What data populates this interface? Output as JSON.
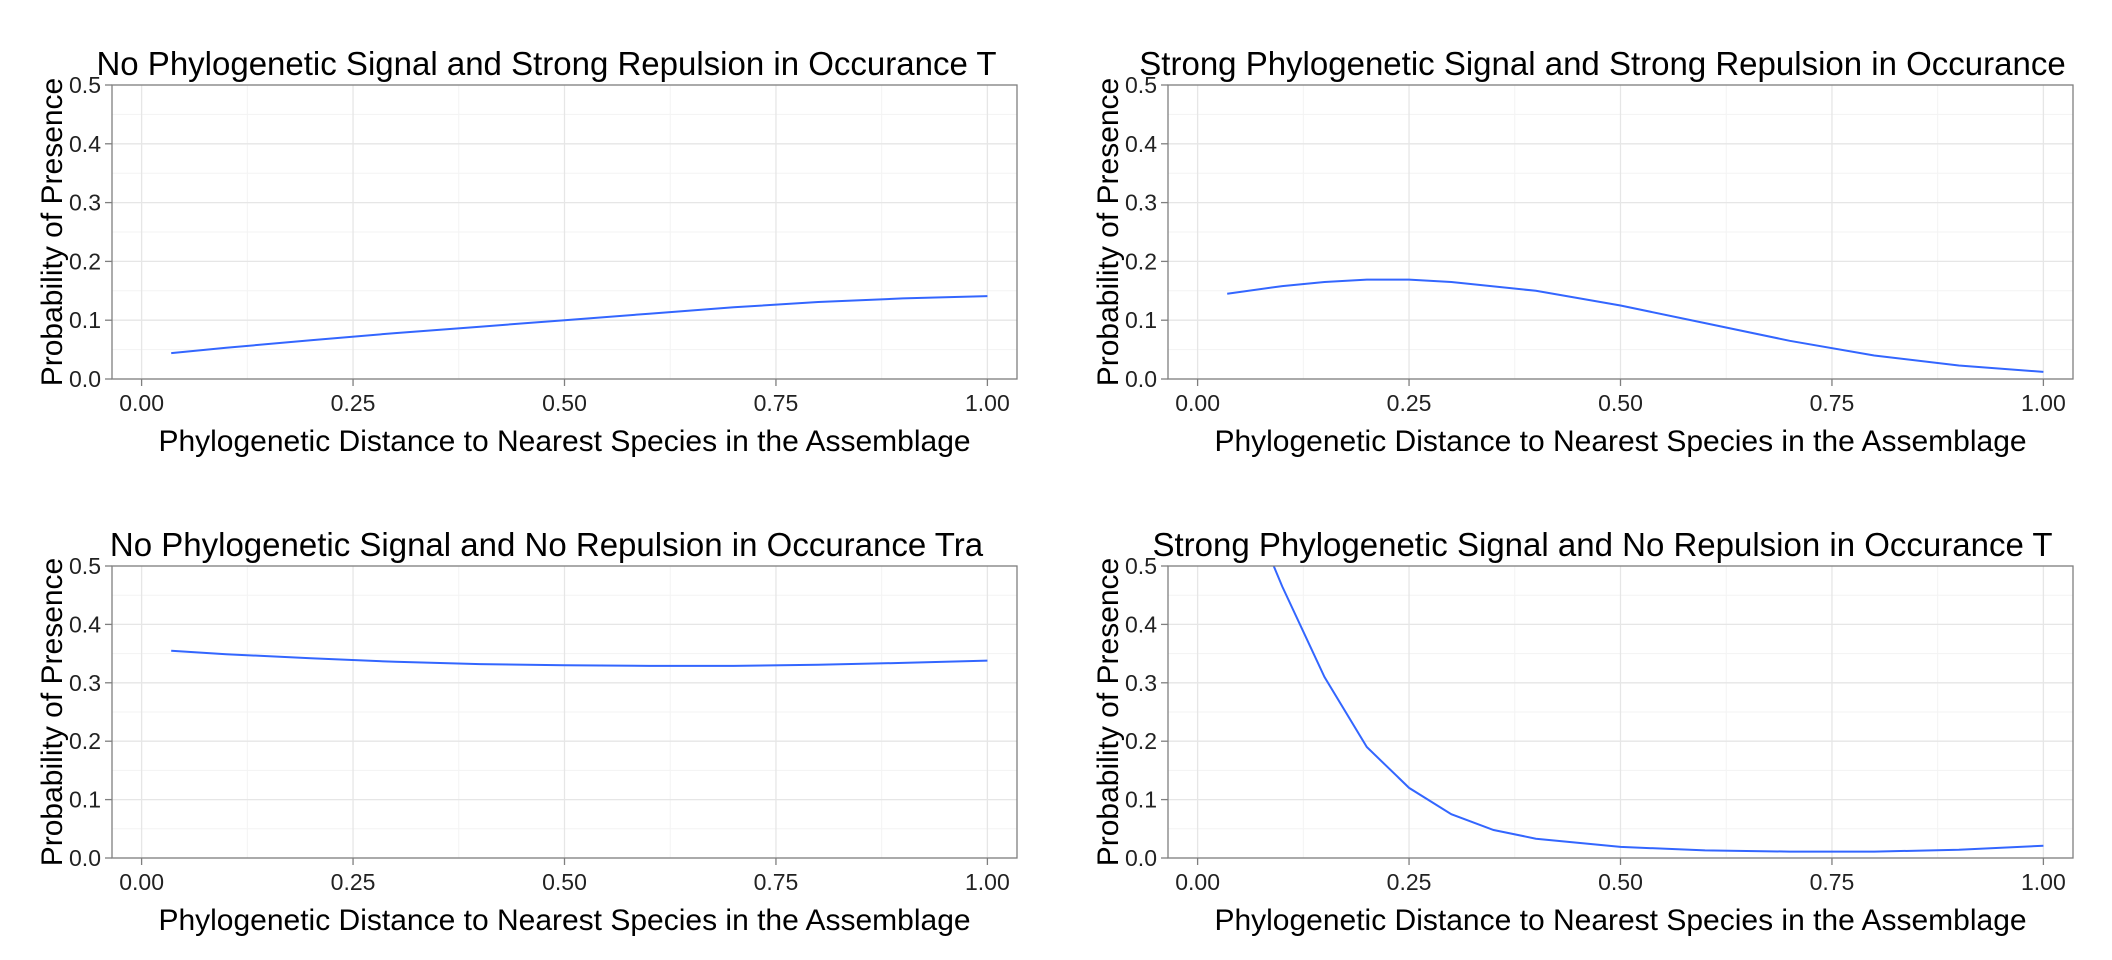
{
  "chart_data": [
    {
      "type": "line",
      "title": "No Phylogenetic Signal and Strong Repulsion in Occurance T",
      "xlabel": "Phylogenetic Distance to Nearest Species in the Assemblage",
      "ylabel": "Probability of Presence",
      "xlim": [
        0,
        1.0
      ],
      "ylim": [
        0,
        0.5
      ],
      "x_ticks": [
        "0.00",
        "0.25",
        "0.50",
        "0.75",
        "1.00"
      ],
      "y_ticks": [
        "0.0",
        "0.1",
        "0.2",
        "0.3",
        "0.4",
        "0.5"
      ],
      "grid": true,
      "series": [
        {
          "x": [
            0.035,
            0.1,
            0.2,
            0.3,
            0.4,
            0.5,
            0.6,
            0.7,
            0.8,
            0.9,
            1.0
          ],
          "y": [
            0.044,
            0.053,
            0.066,
            0.078,
            0.089,
            0.1,
            0.111,
            0.122,
            0.131,
            0.137,
            0.141
          ]
        }
      ]
    },
    {
      "type": "line",
      "title": "Strong Phylogenetic Signal and Strong Repulsion in Occurance",
      "xlabel": "Phylogenetic Distance to Nearest Species in the Assemblage",
      "ylabel": "Probability of Presence",
      "xlim": [
        0,
        1.0
      ],
      "ylim": [
        0,
        0.5
      ],
      "x_ticks": [
        "0.00",
        "0.25",
        "0.50",
        "0.75",
        "1.00"
      ],
      "y_ticks": [
        "0.0",
        "0.1",
        "0.2",
        "0.3",
        "0.4",
        "0.5"
      ],
      "grid": true,
      "series": [
        {
          "x": [
            0.035,
            0.1,
            0.15,
            0.2,
            0.25,
            0.3,
            0.4,
            0.5,
            0.6,
            0.7,
            0.8,
            0.9,
            1.0
          ],
          "y": [
            0.145,
            0.158,
            0.165,
            0.169,
            0.169,
            0.165,
            0.15,
            0.125,
            0.095,
            0.065,
            0.04,
            0.023,
            0.012
          ]
        }
      ]
    },
    {
      "type": "line",
      "title": "No Phylogenetic Signal and No Repulsion in Occurance Tra",
      "xlabel": "Phylogenetic Distance to Nearest Species in the Assemblage",
      "ylabel": "Probability of Presence",
      "xlim": [
        0,
        1.0
      ],
      "ylim": [
        0,
        0.5
      ],
      "x_ticks": [
        "0.00",
        "0.25",
        "0.50",
        "0.75",
        "1.00"
      ],
      "y_ticks": [
        "0.0",
        "0.1",
        "0.2",
        "0.3",
        "0.4",
        "0.5"
      ],
      "grid": true,
      "series": [
        {
          "x": [
            0.035,
            0.1,
            0.2,
            0.3,
            0.4,
            0.5,
            0.6,
            0.7,
            0.8,
            0.9,
            1.0
          ],
          "y": [
            0.355,
            0.349,
            0.342,
            0.336,
            0.332,
            0.33,
            0.329,
            0.329,
            0.331,
            0.334,
            0.338
          ]
        }
      ]
    },
    {
      "type": "line",
      "title": "Strong Phylogenetic Signal and No Repulsion in Occurance T",
      "xlabel": "Phylogenetic Distance to Nearest Species in the Assemblage",
      "ylabel": "Probability of Presence",
      "xlim": [
        0,
        1.0
      ],
      "ylim": [
        0,
        0.5
      ],
      "x_ticks": [
        "0.00",
        "0.25",
        "0.50",
        "0.75",
        "1.00"
      ],
      "y_ticks": [
        "0.0",
        "0.1",
        "0.2",
        "0.3",
        "0.4",
        "0.5"
      ],
      "grid": true,
      "series": [
        {
          "x": [
            0.09,
            0.1,
            0.15,
            0.2,
            0.25,
            0.3,
            0.35,
            0.4,
            0.5,
            0.6,
            0.7,
            0.8,
            0.9,
            1.0
          ],
          "y": [
            0.5,
            0.465,
            0.31,
            0.19,
            0.12,
            0.075,
            0.048,
            0.033,
            0.019,
            0.013,
            0.011,
            0.011,
            0.014,
            0.021
          ]
        }
      ]
    }
  ],
  "colors": {
    "line": "#3366ff",
    "grid_major": "#e6e6e6",
    "grid_minor": "#f3f3f3",
    "border": "#7f7f7f"
  }
}
